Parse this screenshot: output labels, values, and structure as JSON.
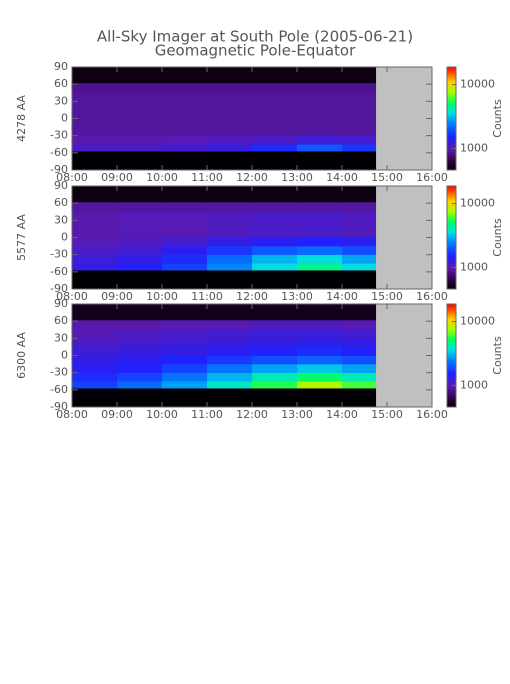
{
  "chart_data": [
    {
      "type": "heatmap",
      "title": "All-Sky Imager at South Pole (2005-06-21)",
      "subtitle": "Geomagnetic Pole-Equator",
      "ylabel": "4278 AA",
      "xlim": [
        8,
        16
      ],
      "xticks": [
        {
          "value": 8,
          "label": "08:00"
        },
        {
          "value": 9,
          "label": "09:00"
        },
        {
          "value": 10,
          "label": "10:00"
        },
        {
          "value": 11,
          "label": "11:00"
        },
        {
          "value": 12,
          "label": "12:00"
        },
        {
          "value": 13,
          "label": "13:00"
        },
        {
          "value": 14,
          "label": "14:00"
        },
        {
          "value": 15,
          "label": "15:00"
        },
        {
          "value": 16,
          "label": "16:00"
        }
      ],
      "ylim": [
        -90,
        90
      ],
      "yticks": [
        90,
        60,
        30,
        0,
        -30,
        -60,
        -90
      ],
      "x_bins": [
        8,
        9,
        10,
        11,
        12,
        13,
        14,
        14.75
      ],
      "y_bins": [
        -90,
        -57,
        -45,
        -30,
        -15,
        0,
        15,
        30,
        45,
        62,
        90
      ],
      "values": [
        [
          470,
          470,
          470,
          470,
          470,
          470,
          470
        ],
        [
          1100,
          1100,
          1150,
          1250,
          1600,
          2000,
          1700
        ],
        [
          950,
          950,
          1000,
          1050,
          1100,
          1200,
          1150
        ],
        [
          900,
          900,
          900,
          900,
          900,
          900,
          900
        ],
        [
          900,
          900,
          900,
          900,
          900,
          900,
          900
        ],
        [
          900,
          900,
          900,
          900,
          900,
          900,
          900
        ],
        [
          900,
          900,
          900,
          900,
          900,
          900,
          900
        ],
        [
          900,
          900,
          900,
          900,
          900,
          900,
          900
        ],
        [
          850,
          850,
          850,
          850,
          850,
          850,
          850
        ],
        [
          500,
          500,
          500,
          500,
          500,
          500,
          500
        ]
      ],
      "missing_color": "#c0c0c0",
      "colorbar": {
        "label": "Counts",
        "log": true,
        "zlim": [
          460,
          18800
        ],
        "ticks": [
          1000,
          10000
        ]
      }
    },
    {
      "type": "heatmap",
      "ylabel": "5577 AA",
      "xlim": [
        8,
        16
      ],
      "xticks": [
        {
          "value": 8,
          "label": "08:00"
        },
        {
          "value": 9,
          "label": "09:00"
        },
        {
          "value": 10,
          "label": "10:00"
        },
        {
          "value": 11,
          "label": "11:00"
        },
        {
          "value": 12,
          "label": "12:00"
        },
        {
          "value": 13,
          "label": "13:00"
        },
        {
          "value": 14,
          "label": "14:00"
        },
        {
          "value": 15,
          "label": "15:00"
        },
        {
          "value": 16,
          "label": "16:00"
        }
      ],
      "ylim": [
        -90,
        90
      ],
      "yticks": [
        90,
        60,
        30,
        0,
        -30,
        -60,
        -90
      ],
      "x_bins": [
        8,
        9,
        10,
        11,
        12,
        13,
        14,
        14.75
      ],
      "y_bins": [
        -90,
        -57,
        -45,
        -30,
        -15,
        0,
        15,
        30,
        45,
        62,
        90
      ],
      "values": [
        [
          470,
          470,
          470,
          470,
          470,
          470,
          470
        ],
        [
          1300,
          1500,
          1800,
          2500,
          3500,
          4500,
          3500
        ],
        [
          1200,
          1300,
          1600,
          2200,
          3000,
          3500,
          2800
        ],
        [
          1100,
          1200,
          1400,
          1700,
          2000,
          2200,
          1900
        ],
        [
          1000,
          1050,
          1150,
          1300,
          1400,
          1500,
          1400
        ],
        [
          950,
          1000,
          1000,
          1050,
          1100,
          1100,
          1050
        ],
        [
          950,
          1000,
          1000,
          1050,
          1100,
          1100,
          1050
        ],
        [
          950,
          1000,
          1000,
          1050,
          1100,
          1100,
          1050
        ],
        [
          900,
          900,
          900,
          900,
          900,
          900,
          900
        ],
        [
          500,
          500,
          500,
          500,
          500,
          500,
          500
        ]
      ],
      "missing_color": "#c0c0c0",
      "colorbar": {
        "label": "Counts",
        "log": true,
        "zlim": [
          460,
          18800
        ],
        "ticks": [
          1000,
          10000
        ]
      }
    },
    {
      "type": "heatmap",
      "ylabel": "6300 AA",
      "xlim": [
        8,
        16
      ],
      "xticks": [
        {
          "value": 8,
          "label": "08:00"
        },
        {
          "value": 9,
          "label": "09:00"
        },
        {
          "value": 10,
          "label": "10:00"
        },
        {
          "value": 11,
          "label": "11:00"
        },
        {
          "value": 12,
          "label": "12:00"
        },
        {
          "value": 13,
          "label": "13:00"
        },
        {
          "value": 14,
          "label": "14:00"
        },
        {
          "value": 15,
          "label": "15:00"
        },
        {
          "value": 16,
          "label": "16:00"
        }
      ],
      "ylim": [
        -90,
        90
      ],
      "yticks": [
        90,
        60,
        30,
        0,
        -30,
        -60,
        -90
      ],
      "x_bins": [
        8,
        9,
        10,
        11,
        12,
        13,
        14,
        14.75
      ],
      "y_bins": [
        -90,
        -57,
        -45,
        -30,
        -15,
        0,
        15,
        30,
        45,
        62,
        90
      ],
      "values": [
        [
          470,
          470,
          470,
          470,
          470,
          470,
          470
        ],
        [
          1800,
          2200,
          2800,
          3800,
          5500,
          8000,
          6000
        ],
        [
          1600,
          1800,
          2300,
          3000,
          4000,
          5000,
          4000
        ],
        [
          1400,
          1500,
          1800,
          2300,
          2800,
          3200,
          2800
        ],
        [
          1300,
          1400,
          1500,
          1700,
          1900,
          2100,
          1900
        ],
        [
          1200,
          1250,
          1300,
          1400,
          1500,
          1600,
          1500
        ],
        [
          1100,
          1150,
          1200,
          1250,
          1300,
          1350,
          1300
        ],
        [
          1000,
          1050,
          1100,
          1150,
          1200,
          1200,
          1150
        ],
        [
          950,
          950,
          1000,
          1000,
          1050,
          1050,
          1000
        ],
        [
          520,
          520,
          520,
          520,
          520,
          520,
          520
        ]
      ],
      "missing_color": "#c0c0c0",
      "colorbar": {
        "label": "Counts",
        "log": true,
        "zlim": [
          460,
          18800
        ],
        "ticks": [
          1000,
          10000
        ]
      }
    }
  ]
}
